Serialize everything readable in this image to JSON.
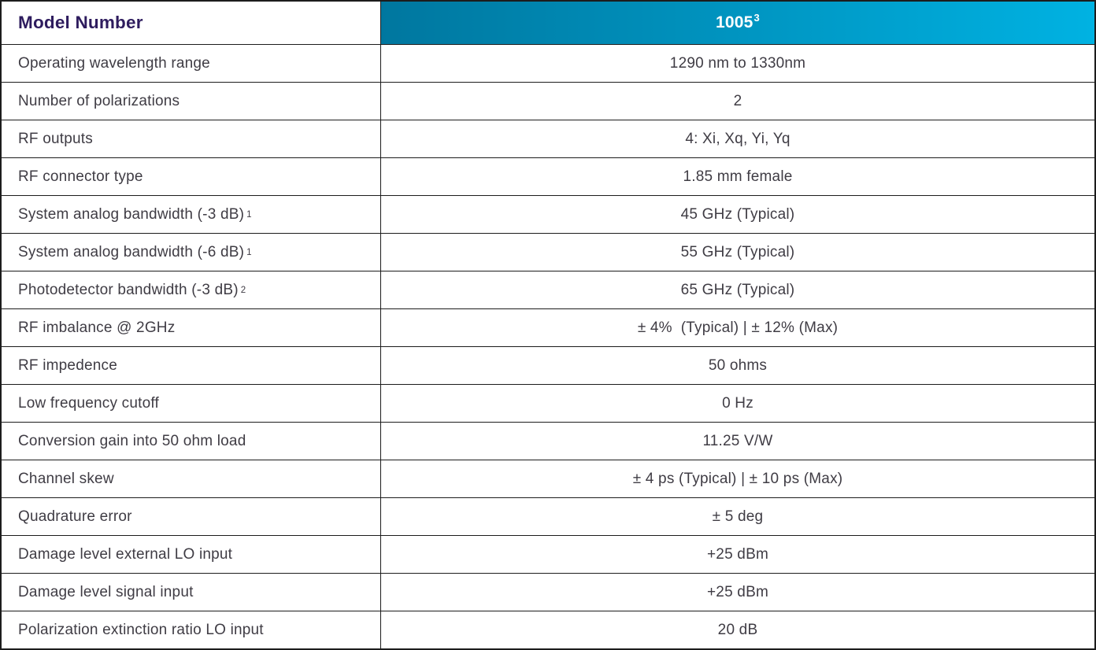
{
  "header": {
    "left_label": "Model Number",
    "model_number": "1005",
    "model_sup": "3"
  },
  "table": {
    "rows": [
      {
        "label": "Operating wavelength range",
        "sup": "",
        "value": "1290 nm to 1330nm"
      },
      {
        "label": "Number of polarizations",
        "sup": "",
        "value": "2"
      },
      {
        "label": "RF outputs",
        "sup": "",
        "value": "4: Xi, Xq, Yi, Yq"
      },
      {
        "label": "RF connector type",
        "sup": "",
        "value": "1.85 mm female"
      },
      {
        "label": "System analog bandwidth (-3 dB)",
        "sup": "1",
        "value": "45 GHz (Typical)"
      },
      {
        "label": "System analog bandwidth (-6 dB)",
        "sup": "1",
        "value": "55 GHz (Typical)"
      },
      {
        "label": "Photodetector bandwidth (-3 dB)",
        "sup": "2",
        "value": "65 GHz (Typical)"
      },
      {
        "label": "RF imbalance @ 2GHz",
        "sup": "",
        "value": "± 4%  (Typical) | ± 12% (Max)"
      },
      {
        "label": "RF impedence",
        "sup": "",
        "value": "50 ohms"
      },
      {
        "label": "Low frequency cutoff",
        "sup": "",
        "value": "0 Hz"
      },
      {
        "label": "Conversion gain into 50 ohm load",
        "sup": "",
        "value": "11.25 V/W"
      },
      {
        "label": "Channel skew",
        "sup": "",
        "value": "± 4 ps (Typical) | ± 10 ps (Max)"
      },
      {
        "label": "Quadrature error",
        "sup": "",
        "value": "± 5 deg"
      },
      {
        "label": "Damage level external LO input",
        "sup": "",
        "value": "+25 dBm"
      },
      {
        "label": "Damage level signal input",
        "sup": "",
        "value": "+25 dBm"
      },
      {
        "label": "Polarization extinction ratio LO input",
        "sup": "",
        "value": "20 dB"
      }
    ]
  },
  "colors": {
    "header_text": "#2e1c5e",
    "gradient_start": "#00779f",
    "gradient_end": "#00b2e2",
    "row_text": "#3f3c44",
    "border": "#1c1c1c"
  }
}
